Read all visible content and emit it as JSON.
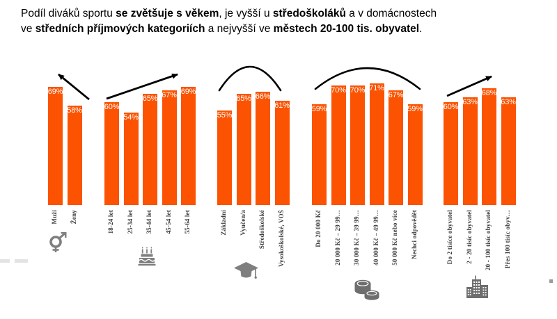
{
  "title": {
    "segments": [
      {
        "text": "Podíl diváků sportu ",
        "bold": false
      },
      {
        "text": "se zvětšuje s věkem",
        "bold": true
      },
      {
        "text": ", je vyšší u ",
        "bold": false
      },
      {
        "text": "středoškoláků",
        "bold": true
      },
      {
        "text": " a v domácnostech",
        "bold": false
      },
      {
        "br": true
      },
      {
        "text": "ve ",
        "bold": false
      },
      {
        "text": "středních příjmových kategoriích",
        "bold": true
      },
      {
        "text": " a nejvyšší ve ",
        "bold": false
      },
      {
        "text": "městech 20-100 tis. obyvatel",
        "bold": true
      },
      {
        "text": ".",
        "bold": false
      }
    ]
  },
  "chart_data": {
    "type": "bar",
    "unit": "%",
    "bar_color": "#fb5301",
    "value_label_color": "#ffffff",
    "ylim": [
      0,
      71
    ],
    "grid": false,
    "legend": "none",
    "groups": [
      {
        "name": "pohlaví",
        "icon": "gender-icon",
        "annotation": "arrow-up-left",
        "categories": [
          "Muži",
          "Ženy"
        ],
        "values": [
          69,
          58
        ]
      },
      {
        "name": "věk",
        "icon": "cake-icon",
        "annotation": "arrow-up-right",
        "categories": [
          "18-24 let",
          "25-34 let",
          "35-44 let",
          "45-54 let",
          "55-64 let"
        ],
        "values": [
          60,
          54,
          65,
          67,
          69
        ]
      },
      {
        "name": "vzdělání",
        "icon": "graduation-cap-icon",
        "annotation": "arc",
        "categories": [
          "Základní",
          "Vyučen/a",
          "Středoškolské",
          "Vysokoškolské, VOŠ"
        ],
        "values": [
          55,
          65,
          66,
          61
        ]
      },
      {
        "name": "příjem domácnosti",
        "icon": "coins-icon",
        "annotation": "arc",
        "categories": [
          "Do 20 000 Kč",
          "20 000 Kč – 29 99…",
          "30 000 Kč – 39 99…",
          "40 000 Kč – 49 99…",
          "50 000 Kč nebo více",
          "Nechci odpovědět"
        ],
        "values": [
          59,
          70,
          70,
          71,
          67,
          59
        ]
      },
      {
        "name": "velikost obce",
        "icon": "buildings-icon",
        "annotation": "arrow-up-right",
        "categories": [
          "Do 2 tisíce obyvatel",
          "2 - 20 tisíc obyvatel",
          "20 - 100 tisíc obyvatel",
          "Přes 100 tisíc obyv…"
        ],
        "values": [
          60,
          63,
          68,
          63
        ]
      }
    ]
  }
}
